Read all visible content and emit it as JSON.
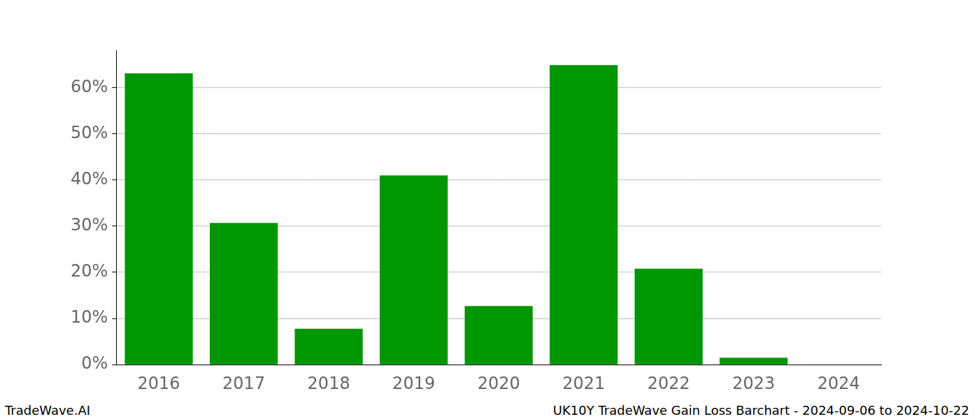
{
  "chart_data": {
    "type": "bar",
    "annotations": [
      "TradeWave.AI",
      "UK10Y TradeWave Gain Loss Barchart - 2024-09-06 to 2024-10-22"
    ],
    "categories": [
      "2016",
      "2017",
      "2018",
      "2019",
      "2020",
      "2021",
      "2022",
      "2023",
      "2024"
    ],
    "values": [
      63.1,
      30.7,
      7.8,
      41.0,
      12.7,
      64.9,
      20.8,
      1.5,
      0
    ],
    "color": "#009600",
    "ylim": [
      0,
      68.1
    ],
    "yticks": [
      {
        "value": 0,
        "label": "0%"
      },
      {
        "value": 10,
        "label": "10%"
      },
      {
        "value": 20,
        "label": "20%"
      },
      {
        "value": 30,
        "label": "30%"
      },
      {
        "value": 40,
        "label": "40%"
      },
      {
        "value": 50,
        "label": "50%"
      },
      {
        "value": 60,
        "label": "60%"
      }
    ],
    "grid": true
  }
}
